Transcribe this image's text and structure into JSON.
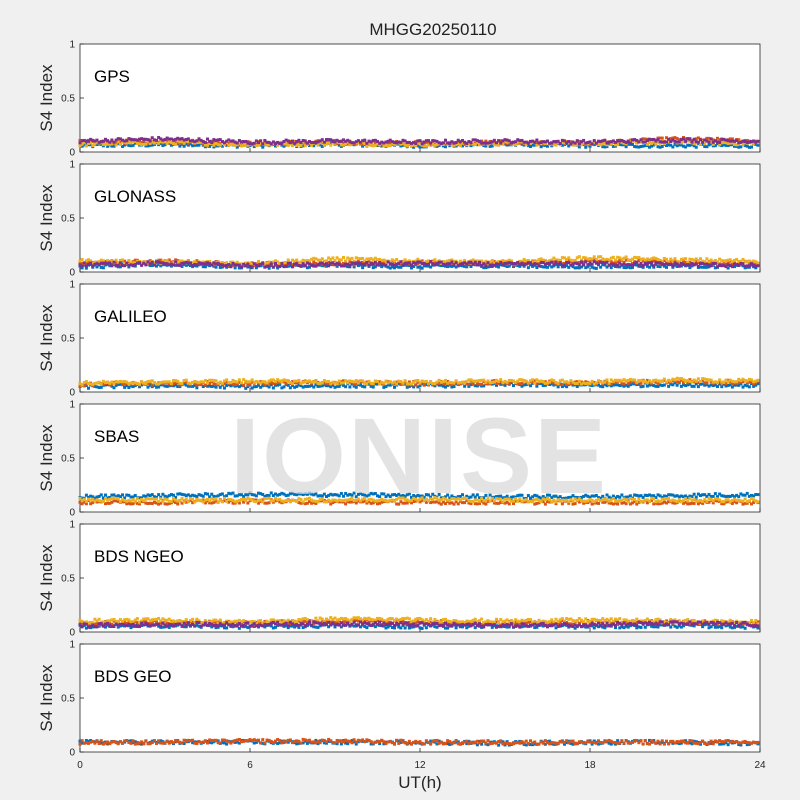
{
  "chart_data": {
    "type": "scatter",
    "title": "MHGG20250110",
    "xlabel": "UT(h)",
    "ylabel": "S4 Index",
    "xlim": [
      0,
      24
    ],
    "ylim": [
      0,
      1
    ],
    "xticks": [
      "0",
      "6",
      "12",
      "18",
      "24"
    ],
    "yticks": [
      "0",
      "0.5",
      "1"
    ],
    "watermark": "IONISE",
    "grid": false,
    "colors": [
      "#0072BD",
      "#D95319",
      "#EDB120",
      "#7E2F8E",
      "#77AC30",
      "#4DBEEE",
      "#A2142F"
    ],
    "panels": [
      {
        "label": "GPS",
        "series": [
          {
            "x": [
              0,
              3,
              6,
              9,
              12,
              15,
              18,
              21,
              24
            ],
            "y": [
              0.06,
              0.07,
              0.06,
              0.07,
              0.06,
              0.07,
              0.06,
              0.06,
              0.06
            ]
          },
          {
            "x": [
              0,
              3,
              6,
              9,
              12,
              15,
              18,
              21,
              24
            ],
            "y": [
              0.09,
              0.1,
              0.08,
              0.09,
              0.08,
              0.09,
              0.08,
              0.12,
              0.1
            ]
          },
          {
            "x": [
              0,
              3,
              6,
              9,
              12,
              15,
              18,
              21,
              24
            ],
            "y": [
              0.07,
              0.09,
              0.07,
              0.08,
              0.07,
              0.08,
              0.08,
              0.09,
              0.08
            ]
          },
          {
            "x": [
              0,
              3,
              6,
              9,
              12,
              15,
              18,
              21,
              24
            ],
            "y": [
              0.1,
              0.12,
              0.09,
              0.1,
              0.09,
              0.1,
              0.09,
              0.11,
              0.1
            ]
          }
        ]
      },
      {
        "label": "GLONASS",
        "series": [
          {
            "x": [
              0,
              3,
              6,
              9,
              12,
              15,
              18,
              21,
              24
            ],
            "y": [
              0.05,
              0.07,
              0.05,
              0.06,
              0.05,
              0.06,
              0.05,
              0.06,
              0.05
            ]
          },
          {
            "x": [
              0,
              3,
              6,
              9,
              12,
              15,
              18,
              21,
              24
            ],
            "y": [
              0.08,
              0.1,
              0.07,
              0.08,
              0.09,
              0.08,
              0.1,
              0.09,
              0.08
            ]
          },
          {
            "x": [
              0,
              3,
              6,
              9,
              12,
              15,
              18,
              21,
              24
            ],
            "y": [
              0.1,
              0.09,
              0.08,
              0.12,
              0.1,
              0.09,
              0.13,
              0.11,
              0.1
            ]
          },
          {
            "x": [
              0,
              3,
              6,
              9,
              12,
              15,
              18,
              21,
              24
            ],
            "y": [
              0.07,
              0.08,
              0.06,
              0.07,
              0.08,
              0.07,
              0.08,
              0.07,
              0.06
            ]
          }
        ]
      },
      {
        "label": "GALILEO",
        "series": [
          {
            "x": [
              0,
              3,
              6,
              9,
              12,
              15,
              18,
              21,
              24
            ],
            "y": [
              0.05,
              0.06,
              0.05,
              0.06,
              0.06,
              0.07,
              0.06,
              0.07,
              0.06
            ]
          },
          {
            "x": [
              0,
              3,
              6,
              9,
              12,
              15,
              18,
              21,
              24
            ],
            "y": [
              0.07,
              0.08,
              0.08,
              0.09,
              0.08,
              0.09,
              0.08,
              0.1,
              0.09
            ]
          },
          {
            "x": [
              0,
              3,
              6,
              9,
              12,
              15,
              18,
              21,
              24
            ],
            "y": [
              0.08,
              0.09,
              0.1,
              0.09,
              0.09,
              0.1,
              0.09,
              0.11,
              0.1
            ]
          }
        ]
      },
      {
        "label": "SBAS",
        "series": [
          {
            "x": [
              0,
              3,
              6,
              9,
              12,
              15,
              18,
              21,
              24
            ],
            "y": [
              0.14,
              0.15,
              0.16,
              0.16,
              0.15,
              0.14,
              0.14,
              0.15,
              0.16
            ]
          },
          {
            "x": [
              0,
              3,
              6,
              9,
              12,
              15,
              18,
              21,
              24
            ],
            "y": [
              0.09,
              0.09,
              0.1,
              0.09,
              0.09,
              0.09,
              0.09,
              0.09,
              0.09
            ]
          },
          {
            "x": [
              0,
              3,
              6,
              9,
              12,
              15,
              18,
              21,
              24
            ],
            "y": [
              0.11,
              0.11,
              0.11,
              0.11,
              0.12,
              0.11,
              0.11,
              0.11,
              0.11
            ]
          }
        ]
      },
      {
        "label": "BDS NGEO",
        "series": [
          {
            "x": [
              0,
              3,
              6,
              9,
              12,
              15,
              18,
              21,
              24
            ],
            "y": [
              0.05,
              0.06,
              0.05,
              0.06,
              0.05,
              0.06,
              0.05,
              0.06,
              0.05
            ]
          },
          {
            "x": [
              0,
              3,
              6,
              9,
              12,
              15,
              18,
              21,
              24
            ],
            "y": [
              0.08,
              0.09,
              0.08,
              0.1,
              0.09,
              0.08,
              0.09,
              0.09,
              0.08
            ]
          },
          {
            "x": [
              0,
              3,
              6,
              9,
              12,
              15,
              18,
              21,
              24
            ],
            "y": [
              0.1,
              0.11,
              0.09,
              0.12,
              0.11,
              0.1,
              0.11,
              0.1,
              0.09
            ]
          },
          {
            "x": [
              0,
              3,
              6,
              9,
              12,
              15,
              18,
              21,
              24
            ],
            "y": [
              0.06,
              0.07,
              0.07,
              0.08,
              0.07,
              0.06,
              0.07,
              0.08,
              0.07
            ]
          }
        ]
      },
      {
        "label": "BDS GEO",
        "series": [
          {
            "x": [
              0,
              3,
              6,
              9,
              12,
              15,
              18,
              21,
              24
            ],
            "y": [
              0.09,
              0.09,
              0.09,
              0.09,
              0.09,
              0.08,
              0.09,
              0.09,
              0.08
            ]
          },
          {
            "x": [
              0,
              3,
              6,
              9,
              12,
              15,
              18,
              21,
              24
            ],
            "y": [
              0.09,
              0.09,
              0.1,
              0.1,
              0.09,
              0.09,
              0.09,
              0.09,
              0.09
            ]
          }
        ]
      }
    ]
  }
}
